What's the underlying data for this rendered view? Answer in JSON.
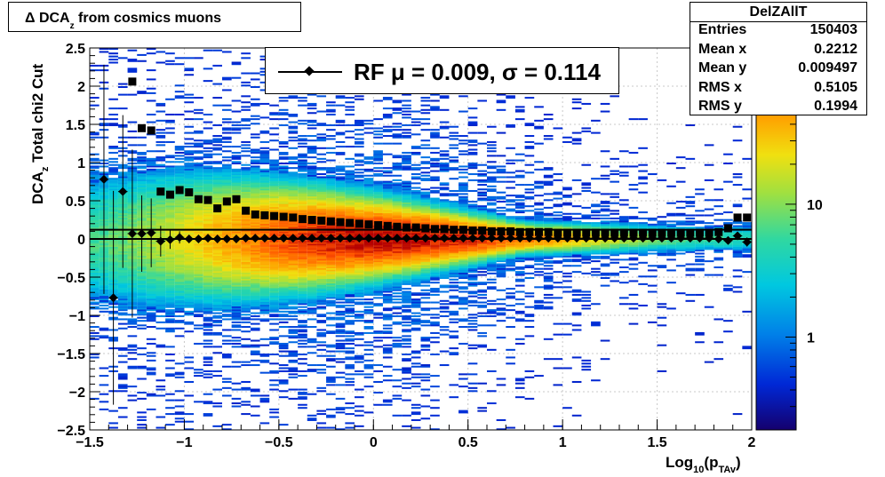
{
  "title": {
    "main": "Δ DCA",
    "sub": "z",
    "rest": " from cosmics muons"
  },
  "stats_box": {
    "name": "DelZAllT",
    "rows": [
      {
        "k": "Entries",
        "v": "150403"
      },
      {
        "k": "Mean x",
        "v": "0.2212"
      },
      {
        "k": "Mean y",
        "v": "0.009497"
      },
      {
        "k": "RMS x",
        "v": "0.5105"
      },
      {
        "k": "RMS y",
        "v": "0.1994"
      }
    ]
  },
  "legend": {
    "text": "RF μ =  0.009, σ =   0.114"
  },
  "axes": {
    "x_title_main": "Log",
    "x_title_sub": "10",
    "x_title_p": "(p",
    "x_title_psub": "TAv",
    "x_title_end": ")",
    "y_title_main": "DCA",
    "y_title_sub": "z",
    "y_title_rest": "  Total chi2 Cut"
  },
  "chart_data": {
    "type": "heatmap",
    "xlim": [
      -1.5,
      2
    ],
    "ylim": [
      -2.5,
      2.5
    ],
    "x_ticks": [
      -1.5,
      -1,
      -0.5,
      0,
      0.5,
      1,
      1.5,
      2
    ],
    "x_tick_labels": [
      "−1.5",
      "−1",
      "−0.5",
      "0",
      "0.5",
      "1",
      "1.5",
      "2"
    ],
    "y_ticks": [
      -2.5,
      -2,
      -1.5,
      -1,
      -0.5,
      0,
      0.5,
      1,
      1.5,
      2,
      2.5
    ],
    "y_tick_labels": [
      "−2.5",
      "−2",
      "−1.5",
      "−1",
      "−0.5",
      "0",
      "0.5",
      "1",
      "1.5",
      "2",
      "2.5"
    ],
    "color_scale": "log",
    "colorbar_ticks": [
      {
        "v": 1,
        "label": "1"
      },
      {
        "v": 10,
        "label": "10"
      }
    ],
    "colorbar_range": [
      0.2,
      150
    ],
    "grid": true,
    "reference_lines_y": [
      0.12,
      0.0
    ],
    "mean_profile": {
      "name": "mean",
      "points": [
        [
          -1.425,
          0.78,
          1.5
        ],
        [
          -1.375,
          -0.77,
          1.4
        ],
        [
          -1.325,
          0.62,
          1.0
        ],
        [
          -1.275,
          0.07,
          1.1
        ],
        [
          -1.225,
          0.07,
          0.5
        ],
        [
          -1.175,
          0.08,
          0.45
        ],
        [
          -1.125,
          -0.03,
          0.2
        ],
        [
          -1.075,
          -0.01,
          0.12
        ],
        [
          -1.025,
          0.02,
          0.08
        ],
        [
          -0.975,
          0.0,
          0.05
        ],
        [
          -0.925,
          0.0,
          0.04
        ],
        [
          -0.875,
          0.01,
          0.03
        ],
        [
          -0.825,
          0.0,
          0.03
        ],
        [
          -0.775,
          0.0,
          0.02
        ],
        [
          -0.725,
          0.0,
          0.02
        ],
        [
          -0.675,
          0.01,
          0.02
        ],
        [
          -0.625,
          0.01,
          0.0
        ],
        [
          -0.575,
          0.01,
          0.0
        ],
        [
          -0.525,
          0.01,
          0.0
        ],
        [
          -0.475,
          0.01,
          0.0
        ],
        [
          -0.425,
          0.01,
          0.0
        ],
        [
          -0.375,
          0.01,
          0.0
        ],
        [
          -0.325,
          0.01,
          0.0
        ],
        [
          -0.275,
          0.01,
          0.0
        ],
        [
          -0.225,
          0.01,
          0.0
        ],
        [
          -0.175,
          0.01,
          0.0
        ],
        [
          -0.125,
          0.01,
          0.0
        ],
        [
          -0.075,
          0.01,
          0.0
        ],
        [
          -0.025,
          0.01,
          0.0
        ],
        [
          0.025,
          0.01,
          0.0
        ],
        [
          0.075,
          0.01,
          0.0
        ],
        [
          0.125,
          0.01,
          0.0
        ],
        [
          0.175,
          0.01,
          0.0
        ],
        [
          0.225,
          0.01,
          0.0
        ],
        [
          0.275,
          0.01,
          0.0
        ],
        [
          0.325,
          0.01,
          0.0
        ],
        [
          0.375,
          0.01,
          0.0
        ],
        [
          0.425,
          0.01,
          0.0
        ],
        [
          0.475,
          0.01,
          0.0
        ],
        [
          0.525,
          0.01,
          0.0
        ],
        [
          0.575,
          0.01,
          0.0
        ],
        [
          0.625,
          0.01,
          0.0
        ],
        [
          0.675,
          0.01,
          0.0
        ],
        [
          0.725,
          0.01,
          0.0
        ],
        [
          0.775,
          0.01,
          0.0
        ],
        [
          0.825,
          0.01,
          0.0
        ],
        [
          0.875,
          0.01,
          0.0
        ],
        [
          0.925,
          0.01,
          0.0
        ],
        [
          0.975,
          0.01,
          0.0
        ],
        [
          1.025,
          0.01,
          0.0
        ],
        [
          1.075,
          0.01,
          0.0
        ],
        [
          1.125,
          0.01,
          0.0
        ],
        [
          1.175,
          0.01,
          0.0
        ],
        [
          1.225,
          0.01,
          0.0
        ],
        [
          1.275,
          0.01,
          0.0
        ],
        [
          1.325,
          0.01,
          0.0
        ],
        [
          1.375,
          0.01,
          0.01
        ],
        [
          1.425,
          0.01,
          0.01
        ],
        [
          1.475,
          0.01,
          0.01
        ],
        [
          1.525,
          0.01,
          0.01
        ],
        [
          1.575,
          0.01,
          0.01
        ],
        [
          1.625,
          0.01,
          0.01
        ],
        [
          1.675,
          0.01,
          0.02
        ],
        [
          1.725,
          0.01,
          0.02
        ],
        [
          1.775,
          0.01,
          0.02
        ],
        [
          1.825,
          0.0,
          0.03
        ],
        [
          1.875,
          -0.02,
          0.04
        ],
        [
          1.925,
          0.04,
          0.05
        ],
        [
          1.975,
          -0.04,
          0.06
        ]
      ]
    },
    "rms_profile": {
      "name": "rms",
      "points": [
        [
          -1.275,
          2.06
        ],
        [
          -1.225,
          1.45
        ],
        [
          -1.175,
          1.42
        ],
        [
          -1.125,
          0.62
        ],
        [
          -1.075,
          0.58
        ],
        [
          -1.025,
          0.64
        ],
        [
          -0.975,
          0.61
        ],
        [
          -0.925,
          0.52
        ],
        [
          -0.875,
          0.51
        ],
        [
          -0.825,
          0.4
        ],
        [
          -0.775,
          0.49
        ],
        [
          -0.725,
          0.52
        ],
        [
          -0.675,
          0.37
        ],
        [
          -0.625,
          0.32
        ],
        [
          -0.575,
          0.31
        ],
        [
          -0.525,
          0.3
        ],
        [
          -0.475,
          0.29
        ],
        [
          -0.425,
          0.28
        ],
        [
          -0.375,
          0.26
        ],
        [
          -0.325,
          0.25
        ],
        [
          -0.275,
          0.24
        ],
        [
          -0.225,
          0.23
        ],
        [
          -0.175,
          0.22
        ],
        [
          -0.125,
          0.21
        ],
        [
          -0.075,
          0.2
        ],
        [
          -0.025,
          0.19
        ],
        [
          0.025,
          0.18
        ],
        [
          0.075,
          0.17
        ],
        [
          0.125,
          0.16
        ],
        [
          0.175,
          0.15
        ],
        [
          0.225,
          0.15
        ],
        [
          0.275,
          0.14
        ],
        [
          0.325,
          0.13
        ],
        [
          0.375,
          0.13
        ],
        [
          0.425,
          0.12
        ],
        [
          0.475,
          0.12
        ],
        [
          0.525,
          0.11
        ],
        [
          0.575,
          0.11
        ],
        [
          0.625,
          0.1
        ],
        [
          0.675,
          0.1
        ],
        [
          0.725,
          0.1
        ],
        [
          0.775,
          0.09
        ],
        [
          0.825,
          0.09
        ],
        [
          0.875,
          0.09
        ],
        [
          0.925,
          0.09
        ],
        [
          0.975,
          0.08
        ],
        [
          1.025,
          0.08
        ],
        [
          1.075,
          0.08
        ],
        [
          1.125,
          0.08
        ],
        [
          1.175,
          0.08
        ],
        [
          1.225,
          0.08
        ],
        [
          1.275,
          0.08
        ],
        [
          1.325,
          0.08
        ],
        [
          1.375,
          0.08
        ],
        [
          1.425,
          0.08
        ],
        [
          1.475,
          0.08
        ],
        [
          1.525,
          0.08
        ],
        [
          1.575,
          0.08
        ],
        [
          1.625,
          0.08
        ],
        [
          1.675,
          0.08
        ],
        [
          1.725,
          0.08
        ],
        [
          1.775,
          0.08
        ],
        [
          1.825,
          0.09
        ],
        [
          1.875,
          0.14
        ],
        [
          1.925,
          0.28
        ],
        [
          1.975,
          0.28
        ]
      ]
    }
  }
}
